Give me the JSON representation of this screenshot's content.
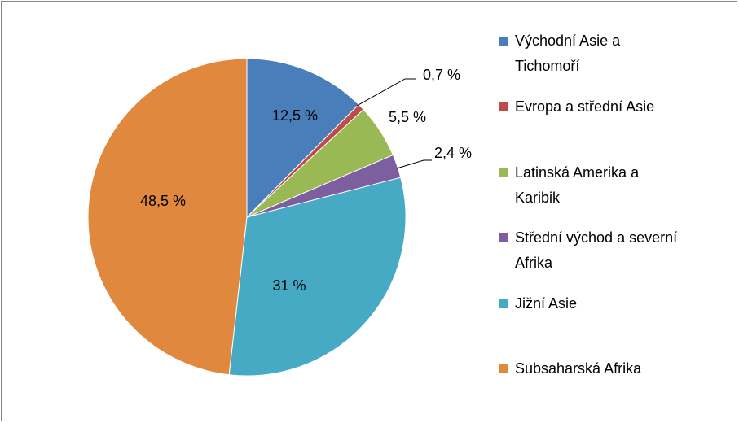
{
  "chart_data": {
    "type": "pie",
    "categories": [
      "Východní Asie a Tichomoří",
      "Evropa a střední Asie",
      "Latinská Amerika a Karibik",
      "Střední východ a severní Afrika",
      "Jižní Asie",
      "Subsaharská Afrika"
    ],
    "values": [
      12.5,
      0.7,
      5.5,
      2.4,
      31,
      48.5
    ],
    "value_labels": [
      "12,5 %",
      "0,7 %",
      "5,5 %",
      "2,4 %",
      "31 %",
      "48,5 %"
    ],
    "colors": [
      "#4a7ebb",
      "#be4b48",
      "#98b954",
      "#7d5fa0",
      "#46aac5",
      "#e0893e"
    ],
    "legend": "right"
  }
}
